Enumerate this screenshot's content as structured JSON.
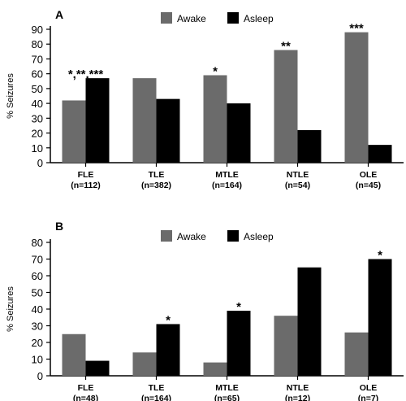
{
  "chart_data": [
    {
      "panel_label": "A",
      "type": "bar",
      "ylabel": "% Seizures",
      "ylim": [
        0,
        90
      ],
      "yticks": [
        0,
        10,
        20,
        30,
        40,
        50,
        60,
        70,
        80,
        90
      ],
      "categories": [
        "FLE",
        "TLE",
        "MTLE",
        "NTLE",
        "OLE"
      ],
      "category_counts": [
        "(n=112)",
        "(n=382)",
        "(n=164)",
        "(n=54)",
        "(n=45)"
      ],
      "series": [
        {
          "name": "Awake",
          "color": "#6b6b6b",
          "values": [
            42,
            57,
            59,
            76,
            88
          ]
        },
        {
          "name": "Asleep",
          "color": "#000000",
          "values": [
            57,
            43,
            40,
            22,
            12
          ]
        }
      ],
      "annotations": [
        "*,**,***",
        "",
        "*",
        "**",
        "***"
      ],
      "legend": "top-center",
      "grid": false
    },
    {
      "panel_label": "B",
      "type": "bar",
      "ylabel": "% Seizures",
      "ylim": [
        0,
        80
      ],
      "yticks": [
        0,
        10,
        20,
        30,
        40,
        50,
        60,
        70,
        80
      ],
      "categories": [
        "FLE",
        "TLE",
        "MTLE",
        "NTLE",
        "OLE"
      ],
      "category_counts": [
        "(n=48)",
        "(n=164)",
        "(n=65)",
        "(n=12)",
        "(n=7)"
      ],
      "series": [
        {
          "name": "Awake",
          "color": "#6b6b6b",
          "values": [
            25,
            14,
            8,
            36,
            26
          ]
        },
        {
          "name": "Asleep",
          "color": "#000000",
          "values": [
            9,
            31,
            39,
            65,
            70
          ]
        }
      ],
      "annotations": [
        "",
        "*",
        "*",
        "",
        "*"
      ],
      "legend": "top-center",
      "grid": false
    }
  ]
}
